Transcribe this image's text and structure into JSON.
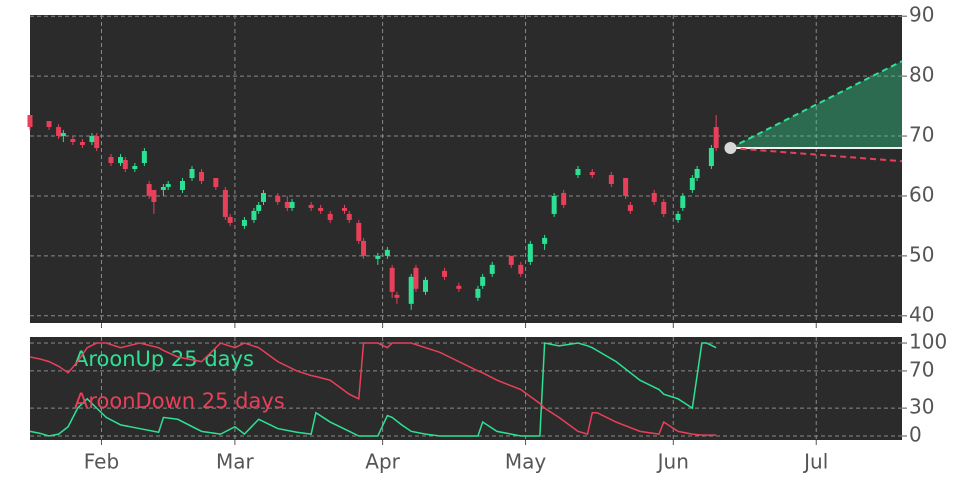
{
  "chart_data": [
    {
      "type": "candlestick",
      "up_color": "#2de194",
      "down_color": "#e8405a",
      "xlim": [
        17,
        200
      ],
      "ylim": [
        38.8,
        90.2
      ],
      "xticks": [
        {
          "value": 32,
          "label": "Feb"
        },
        {
          "value": 60,
          "label": "Mar"
        },
        {
          "value": 91,
          "label": "Apr"
        },
        {
          "value": 121,
          "label": "May"
        },
        {
          "value": 152,
          "label": "Jun"
        },
        {
          "value": 182,
          "label": "Jul"
        }
      ],
      "yticks": [
        40,
        50,
        60,
        70,
        80,
        90
      ],
      "grid": true,
      "candles": {
        "x": [
          17,
          21,
          23,
          24,
          26,
          28,
          30,
          31,
          34,
          36,
          37,
          39,
          41,
          42,
          43,
          45,
          46,
          49,
          51,
          53,
          56,
          58,
          59,
          62,
          64,
          65,
          66,
          69,
          71,
          72,
          76,
          78,
          80,
          83,
          84,
          86,
          87,
          90,
          92,
          93,
          94,
          97,
          98,
          100,
          104,
          107,
          111,
          112,
          114,
          118,
          120,
          122,
          125,
          127,
          129,
          132,
          135,
          139,
          142,
          143,
          148,
          150,
          153,
          154,
          156,
          157,
          160,
          161
        ],
        "open": [
          73.5,
          72.5,
          71.5,
          70,
          69.5,
          69,
          69,
          70,
          66.5,
          65.5,
          66,
          64.5,
          65.5,
          62,
          61,
          61,
          61.5,
          61,
          63,
          64,
          63,
          61,
          56.5,
          55,
          56,
          57.5,
          59,
          60,
          59,
          58,
          58.5,
          58,
          57,
          58,
          57,
          55.5,
          52.5,
          49.5,
          50,
          48,
          43.5,
          42,
          48,
          44,
          47.5,
          45,
          43,
          45,
          47,
          50,
          48.5,
          49,
          52,
          57,
          60.5,
          63.5,
          64,
          63.5,
          63,
          58.5,
          60.5,
          59,
          56,
          58,
          61,
          63,
          65,
          71.5
        ],
        "high": [
          73.5,
          72.5,
          72,
          71,
          70,
          69.5,
          70.5,
          70.5,
          67,
          67,
          66.5,
          65.5,
          68,
          62.5,
          61,
          62,
          62.5,
          63,
          65,
          64.5,
          63,
          61.5,
          57,
          56.5,
          58,
          59,
          61,
          60.5,
          60,
          59.5,
          59,
          58.5,
          57.5,
          58.5,
          57.5,
          56,
          53,
          50.5,
          51.5,
          48.5,
          44,
          47,
          48.5,
          46.5,
          48,
          45.5,
          45,
          47,
          49,
          50,
          49,
          52.5,
          53.5,
          60.5,
          61,
          65,
          64.5,
          64,
          63,
          59,
          61,
          59.5,
          57.5,
          60.5,
          63.5,
          65,
          68.5,
          73.5
        ],
        "low": [
          71,
          71,
          69.5,
          69,
          68.5,
          68,
          68.5,
          67.5,
          65,
          65,
          64,
          64,
          65,
          59.5,
          57,
          60,
          61,
          60.5,
          62.5,
          62,
          61,
          56,
          55,
          54.5,
          55.5,
          57,
          58.5,
          58.5,
          57.5,
          57.5,
          57.5,
          57,
          55.5,
          57,
          55.5,
          52,
          49.5,
          48.5,
          49.5,
          43,
          42,
          41,
          44,
          43.5,
          46,
          44,
          42.5,
          44.5,
          46.5,
          48,
          46.5,
          48.5,
          51,
          56.5,
          58,
          63,
          63,
          61.5,
          59.5,
          57,
          58.5,
          56.5,
          55.5,
          57.5,
          60.5,
          62.5,
          64.5,
          67.5
        ],
        "close": [
          71.5,
          71.5,
          70,
          70.5,
          69,
          68.5,
          70,
          68,
          65.5,
          66.5,
          64.5,
          65,
          67.5,
          60,
          59,
          61.5,
          62,
          62.5,
          64.5,
          62.5,
          61.5,
          56.5,
          55.5,
          56,
          57.5,
          58.5,
          60.5,
          59,
          58,
          59,
          58,
          57.5,
          56,
          57.5,
          56,
          52.5,
          50,
          50,
          51,
          44,
          43,
          46.5,
          44.5,
          46,
          46.5,
          44.5,
          44.5,
          46.5,
          48.5,
          48.5,
          47,
          52,
          53,
          60,
          58.5,
          64.5,
          63.5,
          62,
          60,
          57.5,
          59,
          57,
          57,
          60,
          63,
          64.5,
          68,
          68
        ]
      },
      "projection": {
        "x": [
          164,
          200
        ],
        "upper": [
          68,
          82.5
        ],
        "base": [
          68,
          68
        ],
        "lower": [
          68,
          65.8
        ],
        "upper_color": "#2de194",
        "base_color": "#f0f0f0",
        "lower_color": "#e8405a",
        "point_color": "#d8d8d8"
      }
    },
    {
      "type": "line",
      "xlim": [
        17,
        200
      ],
      "ylim": [
        -4.3,
        106.5
      ],
      "xticks": [
        {
          "value": 32,
          "label": "Feb"
        },
        {
          "value": 60,
          "label": "Mar"
        },
        {
          "value": 91,
          "label": "Apr"
        },
        {
          "value": 121,
          "label": "May"
        },
        {
          "value": 152,
          "label": "Jun"
        },
        {
          "value": 182,
          "label": "Jul"
        }
      ],
      "yticks": [
        0,
        30,
        70,
        100
      ],
      "grid": true,
      "x": [
        17,
        19,
        21,
        23,
        25,
        27,
        29,
        31,
        33,
        36,
        40,
        44,
        45,
        48,
        53,
        57,
        60,
        62,
        65,
        69,
        73,
        76,
        77,
        80,
        84,
        86,
        87,
        90,
        92,
        93,
        95,
        97,
        100,
        103,
        107,
        111,
        112,
        115,
        120,
        124,
        125,
        128,
        132,
        134,
        135,
        136,
        140,
        145,
        149,
        150,
        153,
        156,
        158,
        159,
        161
      ],
      "series": [
        {
          "name": "AroonUp 25 days",
          "color": "#2de194",
          "values": [
            5,
            3,
            0,
            2,
            10,
            30,
            40,
            30,
            20,
            12,
            8,
            4,
            20,
            18,
            5,
            2,
            10,
            2,
            18,
            8,
            4,
            2,
            25,
            15,
            5,
            0,
            0,
            0,
            22,
            20,
            12,
            5,
            2,
            0,
            0,
            0,
            15,
            5,
            0,
            0,
            100,
            97,
            100,
            97,
            95,
            92,
            80,
            60,
            50,
            45,
            40,
            30,
            100,
            100,
            95
          ]
        },
        {
          "name": "AroonDown 25 days",
          "color": "#e8405a",
          "values": [
            85,
            83,
            80,
            75,
            68,
            80,
            95,
            100,
            100,
            95,
            100,
            95,
            92,
            85,
            80,
            100,
            95,
            100,
            95,
            80,
            70,
            65,
            64,
            60,
            45,
            40,
            100,
            100,
            95,
            100,
            100,
            100,
            95,
            90,
            80,
            70,
            68,
            60,
            50,
            35,
            30,
            20,
            5,
            2,
            25,
            25,
            15,
            5,
            2,
            15,
            5,
            2,
            1,
            1,
            1
          ]
        }
      ]
    }
  ]
}
